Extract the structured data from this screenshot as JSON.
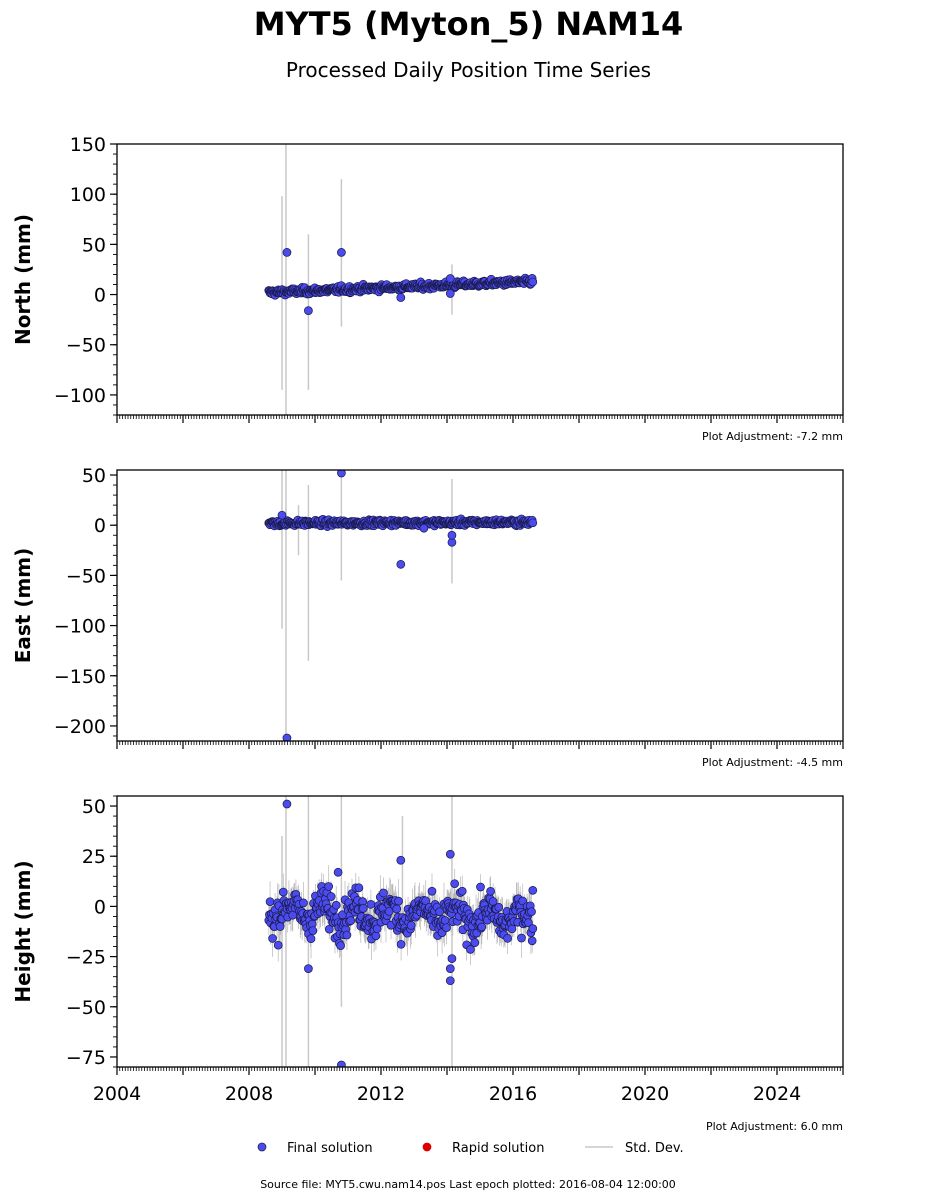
{
  "header": {
    "title": "MYT5 (Myton_5) NAM14",
    "subtitle": "Processed Daily Position Time Series"
  },
  "footer": {
    "source": "Source file: MYT5.cwu.nam14.pos  Last epoch plotted: 2016-08-04 12:00:00"
  },
  "colors": {
    "final": "#4b4bf0",
    "final_edge": "#1a1a4a",
    "rapid": "#dd0000",
    "stddev": "#c8c8c8",
    "axis": "#000000"
  },
  "chart_data": [
    {
      "type": "scatter",
      "ylabel": "North (mm)",
      "adjustment": "Plot Adjustment: -7.2 mm",
      "xlim": [
        2004,
        2026
      ],
      "ylim": [
        -120,
        150
      ],
      "yticks": [
        -100,
        -50,
        0,
        50,
        100,
        150
      ],
      "ytick_labels": [
        "−100",
        "−50",
        "0",
        "50",
        "100",
        "150"
      ],
      "trend": {
        "start": [
          2008.6,
          2
        ],
        "end": [
          2016.6,
          13
        ],
        "noise": 2.2,
        "err": 3
      },
      "err_spikes": [
        {
          "x": 2009.0,
          "y": 2,
          "lo": -95,
          "hi": 98
        },
        {
          "x": 2009.12,
          "y": 3,
          "lo": -120,
          "hi": 150
        },
        {
          "x": 2009.8,
          "y": 3,
          "lo": -95,
          "hi": 60
        },
        {
          "x": 2010.8,
          "y": 6,
          "lo": -32,
          "hi": 115
        },
        {
          "x": 2014.15,
          "y": 8,
          "lo": -20,
          "hi": 30
        }
      ],
      "outliers": [
        {
          "x": 2009.15,
          "y": 42
        },
        {
          "x": 2009.8,
          "y": -16
        },
        {
          "x": 2010.8,
          "y": 42
        },
        {
          "x": 2012.6,
          "y": -3
        },
        {
          "x": 2014.1,
          "y": 1
        },
        {
          "x": 2014.1,
          "y": 16
        }
      ]
    },
    {
      "type": "scatter",
      "ylabel": "East (mm)",
      "adjustment": "Plot Adjustment: -4.5 mm",
      "xlim": [
        2004,
        2026
      ],
      "ylim": [
        -215,
        55
      ],
      "yticks": [
        -200,
        -150,
        -100,
        -50,
        0,
        50
      ],
      "ytick_labels": [
        "−200",
        "−150",
        "−100",
        "−50",
        "0",
        "50"
      ],
      "trend": {
        "start": [
          2008.6,
          2
        ],
        "end": [
          2016.6,
          3
        ],
        "noise": 2.0,
        "err": 3
      },
      "err_spikes": [
        {
          "x": 2009.0,
          "y": 2,
          "lo": -103,
          "hi": 55
        },
        {
          "x": 2009.12,
          "y": 2,
          "lo": -215,
          "hi": 55
        },
        {
          "x": 2009.5,
          "y": 2,
          "lo": -30,
          "hi": 20
        },
        {
          "x": 2009.8,
          "y": 2,
          "lo": -135,
          "hi": 40
        },
        {
          "x": 2010.8,
          "y": 3,
          "lo": -55,
          "hi": 55
        },
        {
          "x": 2014.15,
          "y": -5,
          "lo": -58,
          "hi": 46
        }
      ],
      "outliers": [
        {
          "x": 2009.15,
          "y": -212
        },
        {
          "x": 2010.8,
          "y": 52
        },
        {
          "x": 2012.6,
          "y": -39
        },
        {
          "x": 2014.15,
          "y": -17
        },
        {
          "x": 2014.15,
          "y": -10
        },
        {
          "x": 2009.0,
          "y": 10
        },
        {
          "x": 2013.3,
          "y": -3
        }
      ]
    },
    {
      "type": "scatter",
      "ylabel": "Height (mm)",
      "adjustment": "Plot Adjustment: 6.0 mm",
      "xlim": [
        2004,
        2026
      ],
      "ylim": [
        -80,
        55
      ],
      "yticks": [
        -75,
        -50,
        -25,
        0,
        25,
        50
      ],
      "ytick_labels": [
        "−75",
        "−50",
        "−25",
        "0",
        "25",
        "50"
      ],
      "xticks": [
        2004,
        2008,
        2012,
        2016,
        2020,
        2024
      ],
      "xtick_labels": [
        "2004",
        "2008",
        "2012",
        "2016",
        "2020",
        "2024"
      ],
      "trend": {
        "start": [
          2008.6,
          -2
        ],
        "end": [
          2016.6,
          -6
        ],
        "noise": 6.5,
        "err": 8
      },
      "err_spikes": [
        {
          "x": 2009.0,
          "y": 0,
          "lo": -80,
          "hi": 35
        },
        {
          "x": 2009.12,
          "y": 0,
          "lo": -80,
          "hi": 55
        },
        {
          "x": 2009.8,
          "y": 0,
          "lo": -80,
          "hi": 55
        },
        {
          "x": 2010.8,
          "y": -5,
          "lo": -50,
          "hi": 55
        },
        {
          "x": 2012.65,
          "y": 5,
          "lo": -10,
          "hi": 45
        },
        {
          "x": 2014.15,
          "y": -10,
          "lo": -80,
          "hi": 55
        }
      ],
      "outliers": [
        {
          "x": 2009.15,
          "y": 51
        },
        {
          "x": 2009.8,
          "y": -31
        },
        {
          "x": 2010.8,
          "y": -79
        },
        {
          "x": 2012.6,
          "y": 23
        },
        {
          "x": 2014.1,
          "y": 26
        },
        {
          "x": 2014.1,
          "y": -37
        },
        {
          "x": 2014.1,
          "y": -31
        },
        {
          "x": 2014.15,
          "y": -26
        },
        {
          "x": 2010.7,
          "y": 17
        },
        {
          "x": 2016.6,
          "y": 8
        }
      ]
    }
  ],
  "legend": {
    "placement": "bottom-center",
    "items": [
      {
        "label": "Final solution",
        "kind": "dot",
        "color": "#4b4bf0"
      },
      {
        "label": "Rapid solution",
        "kind": "dot",
        "color": "#dd0000"
      },
      {
        "label": "Std. Dev.",
        "kind": "line",
        "color": "#c8c8c8"
      }
    ]
  }
}
